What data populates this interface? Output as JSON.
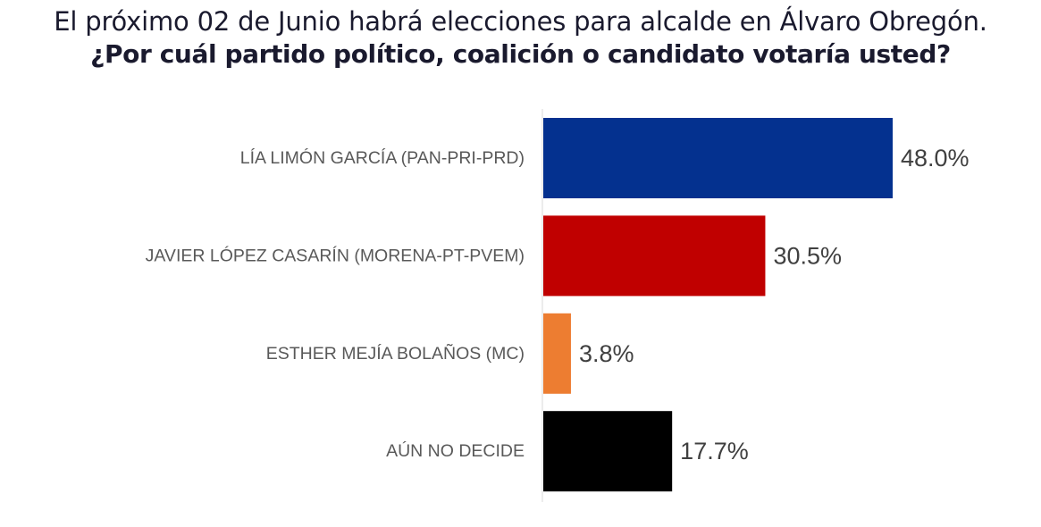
{
  "header": {
    "line1": "El próximo 02 de Junio habrá elecciones para alcalde en Álvaro Obregón.",
    "line2": "¿Por cuál partido político, coalición o candidato votaría usted?"
  },
  "chart_data": {
    "type": "bar",
    "orientation": "horizontal",
    "categories": [
      "LÍA LIMÓN GARCÍA (PAN-PRI-PRD)",
      "JAVIER LÓPEZ CASARÍN (MORENA-PT-PVEM)",
      "ESTHER MEJÍA BOLAÑOS (MC)",
      "AÚN NO DECIDE"
    ],
    "values": [
      48.0,
      30.5,
      3.8,
      17.7
    ],
    "value_labels": [
      "48.0%",
      "30.5%",
      "3.8%",
      "17.7%"
    ],
    "colors": [
      "#04318F",
      "#C00000",
      "#ED7D31",
      "#000000"
    ],
    "xlim": [
      0,
      48.0
    ],
    "grid": false,
    "legend": "none"
  }
}
